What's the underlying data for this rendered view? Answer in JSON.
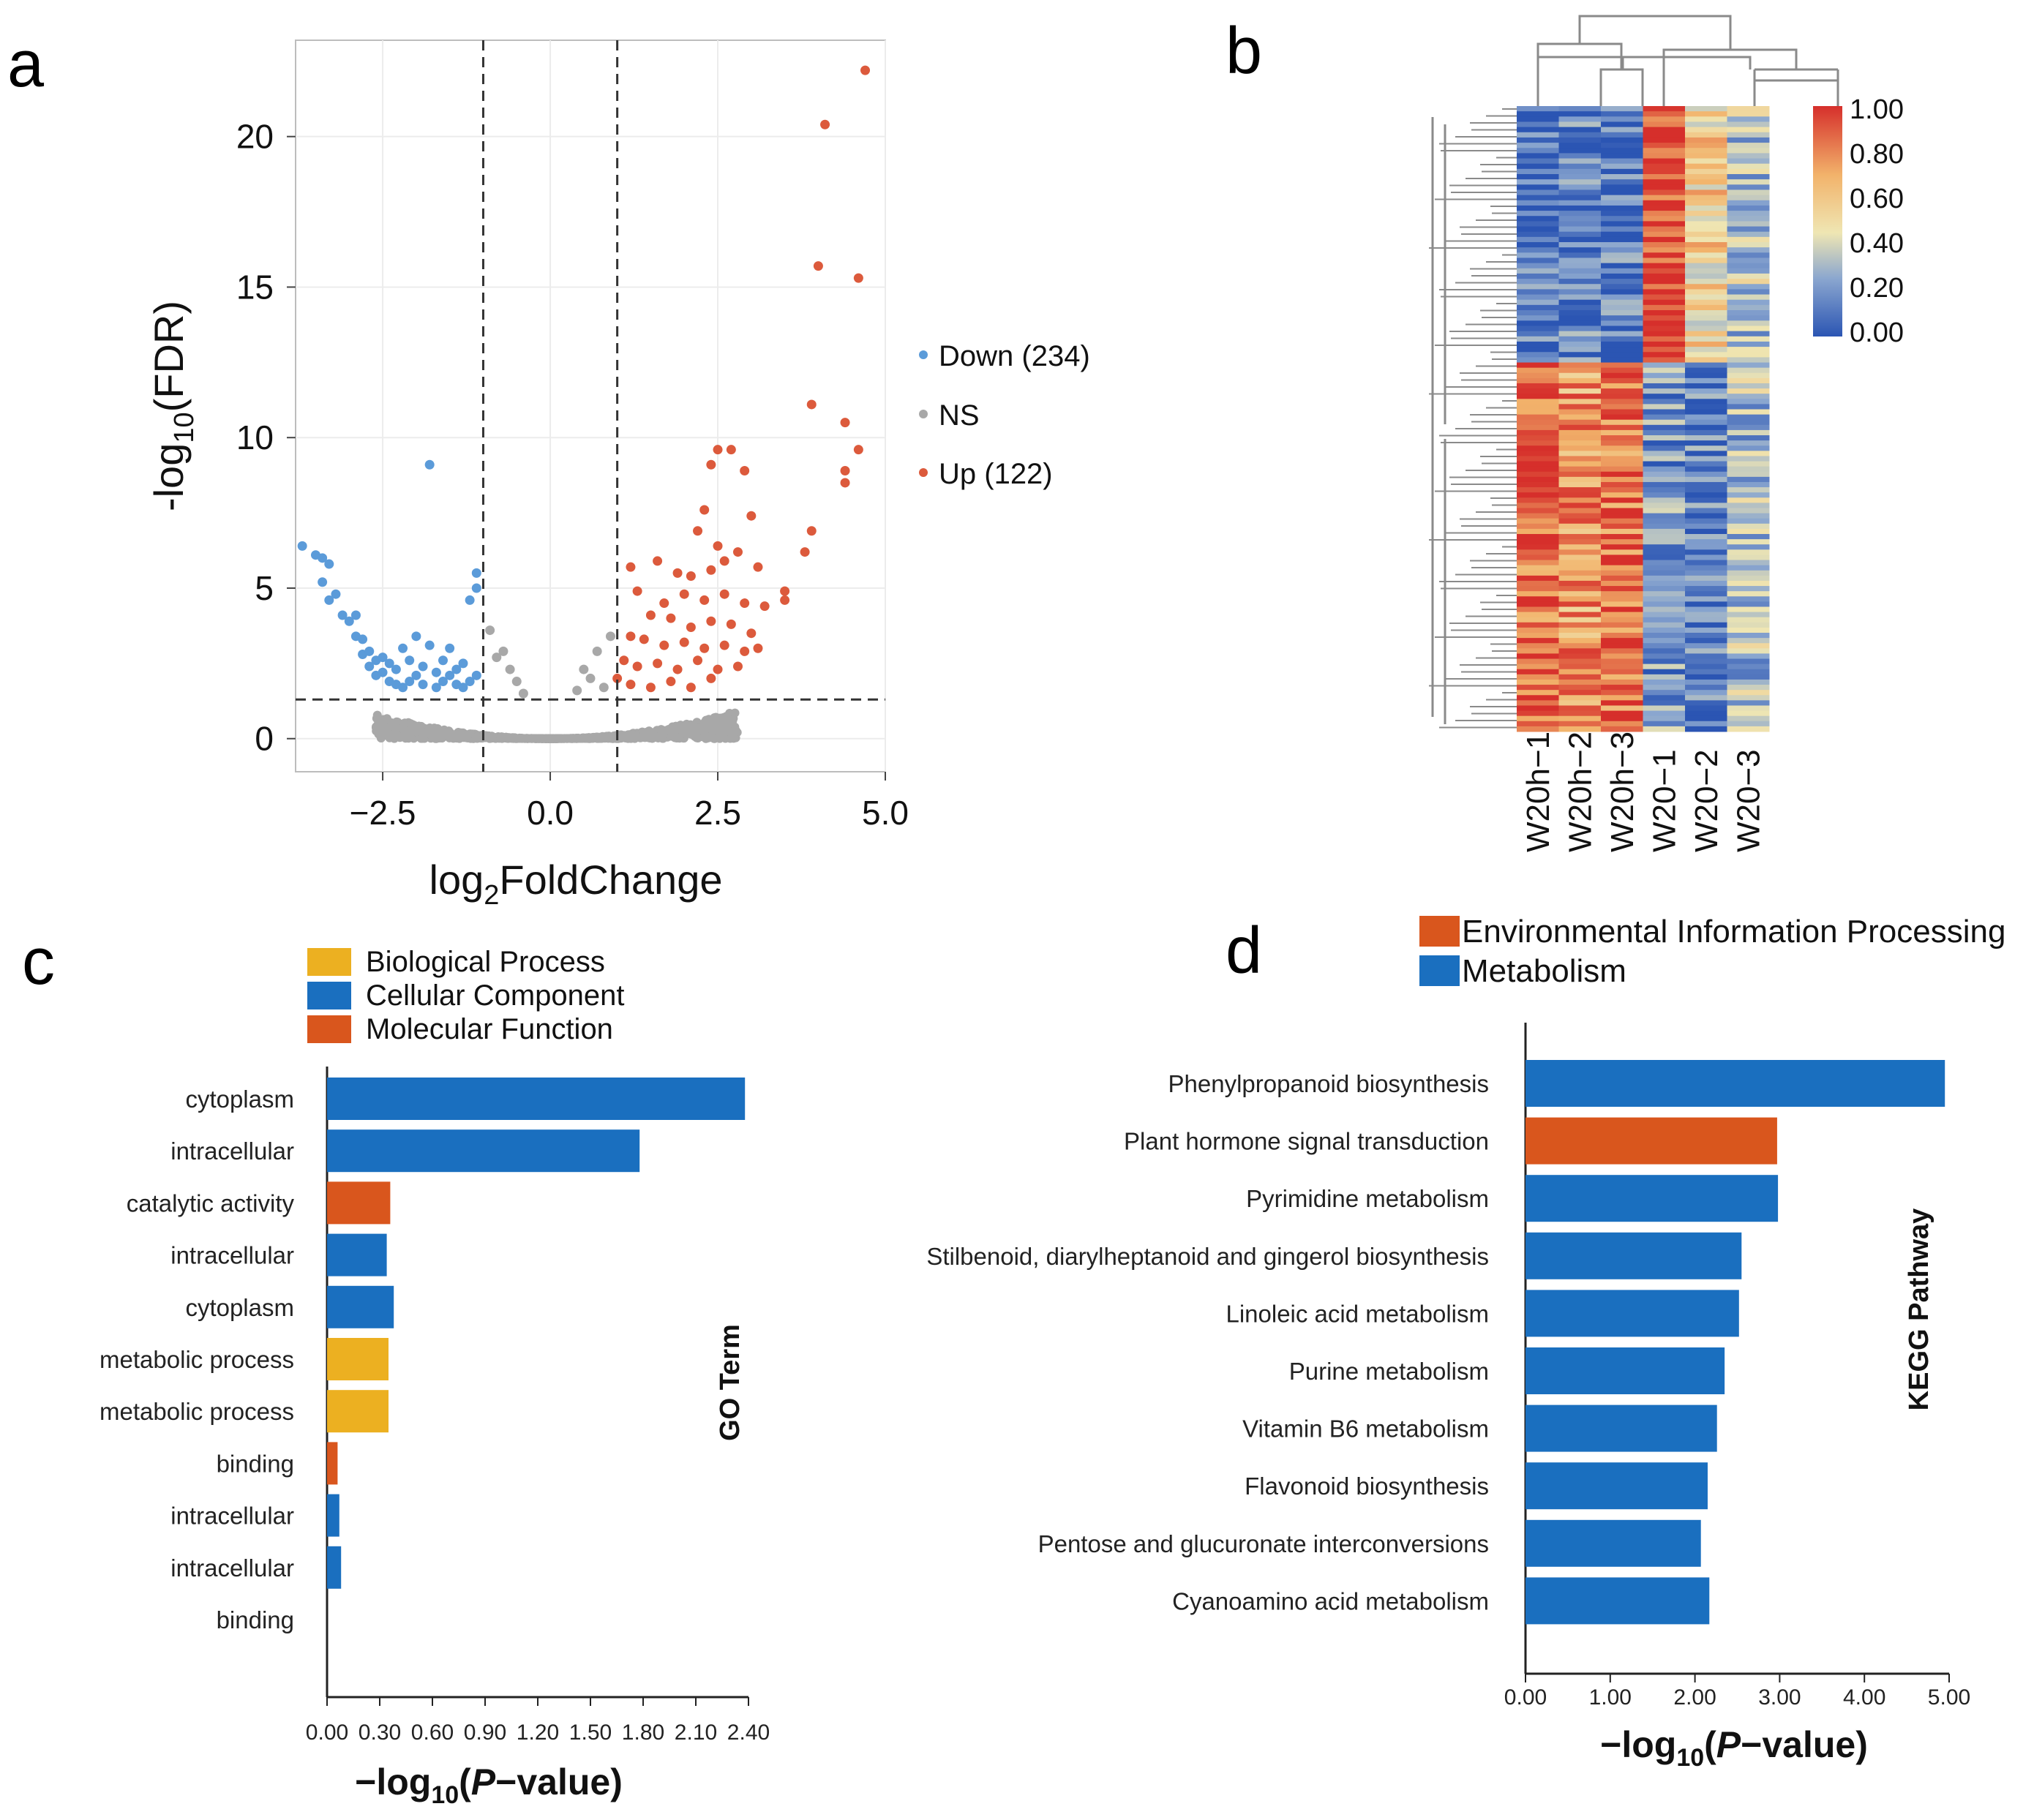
{
  "panels": {
    "a": "a",
    "b": "b",
    "c": "c",
    "d": "d"
  },
  "colors": {
    "down": "#5b9bd9",
    "ns": "#a8a8a8",
    "up": "#dc5a3c",
    "bp": "#ecb021",
    "cc": "#1a6fbf",
    "mf": "#d9561d",
    "kegg_env": "#d9561d",
    "kegg_met": "#1a6fbf"
  },
  "chart_data": [
    {
      "id": "volcano",
      "type": "scatter",
      "title": "",
      "xlabel_main": "log",
      "xlabel_sub": "2",
      "xlabel_rest": "FoldChange",
      "ylabel_main": "-log",
      "ylabel_sub": "10",
      "ylabel_rest": "(FDR)",
      "xlim": [
        -3.8,
        5.0
      ],
      "ylim": [
        -1.1,
        23.2
      ],
      "xticks": [
        -2.5,
        0.0,
        2.5,
        5.0
      ],
      "xtick_labels": [
        "−2.5",
        "0.0",
        "2.5",
        "5.0"
      ],
      "yticks": [
        0,
        5,
        10,
        15,
        20
      ],
      "ytick_labels": [
        "0",
        "5",
        "10",
        "15",
        "20"
      ],
      "thresholds": {
        "x": [
          -1.0,
          1.0
        ],
        "y": 1.3
      },
      "legend": [
        {
          "key": "down",
          "label": "Down (234)"
        },
        {
          "key": "ns",
          "label": "NS"
        },
        {
          "key": "up",
          "label": "Up (122)"
        }
      ],
      "series": [
        {
          "name": "Down",
          "points": [
            [
              -3.7,
              6.4
            ],
            [
              -3.5,
              6.1
            ],
            [
              -3.4,
              6.0
            ],
            [
              -3.3,
              5.8
            ],
            [
              -3.4,
              5.2
            ],
            [
              -3.3,
              4.6
            ],
            [
              -3.2,
              4.8
            ],
            [
              -3.1,
              4.1
            ],
            [
              -3.0,
              3.9
            ],
            [
              -2.9,
              4.1
            ],
            [
              -2.9,
              3.4
            ],
            [
              -2.8,
              3.3
            ],
            [
              -2.8,
              2.8
            ],
            [
              -2.7,
              2.9
            ],
            [
              -2.7,
              2.4
            ],
            [
              -2.6,
              2.6
            ],
            [
              -2.6,
              2.1
            ],
            [
              -2.5,
              2.2
            ],
            [
              -2.5,
              2.7
            ],
            [
              -2.4,
              1.9
            ],
            [
              -2.4,
              2.5
            ],
            [
              -2.3,
              1.8
            ],
            [
              -2.3,
              2.3
            ],
            [
              -2.2,
              3.0
            ],
            [
              -2.2,
              1.7
            ],
            [
              -2.1,
              1.9
            ],
            [
              -2.1,
              2.6
            ],
            [
              -2.0,
              2.1
            ],
            [
              -2.0,
              3.4
            ],
            [
              -1.9,
              1.8
            ],
            [
              -1.9,
              2.4
            ],
            [
              -1.8,
              9.1
            ],
            [
              -1.8,
              3.1
            ],
            [
              -1.7,
              1.7
            ],
            [
              -1.7,
              2.2
            ],
            [
              -1.6,
              2.6
            ],
            [
              -1.6,
              1.9
            ],
            [
              -1.5,
              2.1
            ],
            [
              -1.5,
              3.0
            ],
            [
              -1.4,
              1.8
            ],
            [
              -1.4,
              2.3
            ],
            [
              -1.3,
              1.7
            ],
            [
              -1.3,
              2.5
            ],
            [
              -1.2,
              1.9
            ],
            [
              -1.2,
              4.6
            ],
            [
              -1.1,
              5.0
            ],
            [
              -1.1,
              5.5
            ],
            [
              -1.1,
              2.1
            ]
          ]
        },
        {
          "name": "NS",
          "points": [
            [
              -0.9,
              3.6
            ],
            [
              -0.8,
              2.7
            ],
            [
              -0.7,
              2.9
            ],
            [
              -0.6,
              2.3
            ],
            [
              -0.5,
              1.9
            ],
            [
              -0.4,
              1.5
            ],
            [
              0.4,
              1.6
            ],
            [
              0.5,
              2.3
            ],
            [
              0.6,
              2.0
            ],
            [
              0.7,
              2.9
            ],
            [
              0.8,
              1.7
            ],
            [
              0.9,
              3.4
            ]
          ]
        },
        {
          "name": "Up",
          "points": [
            [
              4.7,
              22.2
            ],
            [
              4.1,
              20.4
            ],
            [
              4.0,
              15.7
            ],
            [
              4.6,
              15.3
            ],
            [
              3.9,
              11.1
            ],
            [
              4.4,
              10.5
            ],
            [
              4.6,
              9.6
            ],
            [
              4.4,
              8.9
            ],
            [
              4.4,
              8.5
            ],
            [
              2.5,
              9.6
            ],
            [
              2.7,
              9.6
            ],
            [
              2.4,
              9.1
            ],
            [
              2.9,
              8.9
            ],
            [
              2.3,
              7.6
            ],
            [
              3.9,
              6.9
            ],
            [
              3.8,
              6.2
            ],
            [
              3.0,
              7.4
            ],
            [
              2.2,
              6.9
            ],
            [
              2.5,
              6.4
            ],
            [
              2.8,
              6.2
            ],
            [
              2.1,
              5.4
            ],
            [
              2.4,
              5.6
            ],
            [
              2.6,
              5.9
            ],
            [
              3.1,
              5.7
            ],
            [
              3.5,
              4.9
            ],
            [
              3.5,
              4.6
            ],
            [
              1.2,
              5.7
            ],
            [
              1.6,
              5.9
            ],
            [
              1.9,
              5.5
            ],
            [
              1.3,
              4.9
            ],
            [
              1.7,
              4.5
            ],
            [
              2.0,
              4.8
            ],
            [
              2.3,
              4.6
            ],
            [
              2.6,
              4.8
            ],
            [
              2.9,
              4.5
            ],
            [
              3.2,
              4.4
            ],
            [
              1.5,
              4.1
            ],
            [
              1.8,
              4.0
            ],
            [
              2.1,
              3.7
            ],
            [
              2.4,
              3.9
            ],
            [
              2.7,
              3.8
            ],
            [
              3.0,
              3.5
            ],
            [
              1.2,
              3.4
            ],
            [
              1.4,
              3.3
            ],
            [
              1.7,
              3.1
            ],
            [
              2.0,
              3.2
            ],
            [
              2.3,
              3.0
            ],
            [
              2.6,
              3.1
            ],
            [
              2.9,
              2.9
            ],
            [
              3.1,
              3.0
            ],
            [
              1.1,
              2.6
            ],
            [
              1.3,
              2.4
            ],
            [
              1.6,
              2.5
            ],
            [
              1.9,
              2.3
            ],
            [
              2.2,
              2.6
            ],
            [
              2.5,
              2.3
            ],
            [
              2.8,
              2.4
            ],
            [
              1.0,
              2.0
            ],
            [
              1.2,
              1.8
            ],
            [
              1.5,
              1.7
            ],
            [
              1.8,
              1.9
            ],
            [
              2.1,
              1.7
            ],
            [
              2.4,
              2.0
            ]
          ]
        }
      ]
    },
    {
      "id": "heatmap",
      "type": "heatmap",
      "columns": [
        "W20h−1",
        "W20h−2",
        "W20h−3",
        "W20−1",
        "W20−2",
        "W20−3"
      ],
      "colorbar": {
        "min": 0.0,
        "max": 1.0,
        "ticks": [
          "1.00",
          "0.80",
          "0.60",
          "0.40",
          "0.20",
          "0.00"
        ]
      },
      "blocks": [
        {
          "rows": 0.41,
          "means": [
            0.08,
            0.12,
            0.1,
            0.97,
            0.55,
            0.35
          ]
        },
        {
          "rows": 0.59,
          "means": [
            0.88,
            0.75,
            0.85,
            0.2,
            0.12,
            0.3
          ]
        }
      ]
    },
    {
      "id": "go",
      "type": "bar",
      "orientation": "horizontal",
      "categories": [
        "cytoplasm",
        "intracellular",
        "catalytic activity",
        "intracellular",
        "cytoplasm",
        "metabolic process",
        "metabolic process",
        "binding",
        "intracellular",
        "intracellular",
        "binding"
      ],
      "values": [
        2.38,
        1.78,
        0.36,
        0.34,
        0.38,
        0.35,
        0.35,
        0.06,
        0.07,
        0.08,
        0.0
      ],
      "groups": [
        "cc",
        "cc",
        "mf",
        "cc",
        "cc",
        "bp",
        "bp",
        "mf",
        "cc",
        "cc",
        "mf"
      ],
      "xlim": [
        0,
        2.4
      ],
      "xtick_labels": [
        "0.00",
        "0.30",
        "0.60",
        "0.90",
        "1.20",
        "1.50",
        "1.80",
        "2.10",
        "2.40"
      ],
      "xlabel_main": "−log",
      "xlabel_sub": "10",
      "xlabel_open": "(",
      "xlabel_italic": "P",
      "xlabel_rest": "−value)",
      "side_title": "GO Term",
      "legend": [
        {
          "key": "bp",
          "label": "Biological Process"
        },
        {
          "key": "cc",
          "label": "Cellular Component"
        },
        {
          "key": "mf",
          "label": "Molecular Function"
        }
      ]
    },
    {
      "id": "kegg",
      "type": "bar",
      "orientation": "horizontal",
      "categories": [
        "Phenylpropanoid biosynthesis",
        "Plant hormone signal transduction",
        "Pyrimidine metabolism",
        "Stilbenoid, diarylheptanoid and gingerol biosynthesis",
        "Linoleic acid metabolism",
        "Purine metabolism",
        "Vitamin B6 metabolism",
        "Flavonoid biosynthesis",
        "Pentose and glucuronate interconversions",
        "Cyanoamino acid metabolism"
      ],
      "values": [
        4.95,
        2.97,
        2.98,
        2.55,
        2.52,
        2.35,
        2.26,
        2.15,
        2.07,
        2.17
      ],
      "groups": [
        "met",
        "env",
        "met",
        "met",
        "met",
        "met",
        "met",
        "met",
        "met",
        "met"
      ],
      "xlim": [
        0,
        5.0
      ],
      "xtick_labels": [
        "0.00",
        "1.00",
        "2.00",
        "3.00",
        "4.00",
        "5.00"
      ],
      "xlabel_main": "−log",
      "xlabel_sub": "10",
      "xlabel_open": "(",
      "xlabel_italic": "P",
      "xlabel_rest": "−value)",
      "side_title": "KEGG Pathway",
      "legend": [
        {
          "key": "env",
          "label": "Environmental Information Processing"
        },
        {
          "key": "met",
          "label": "Metabolism"
        }
      ]
    }
  ]
}
